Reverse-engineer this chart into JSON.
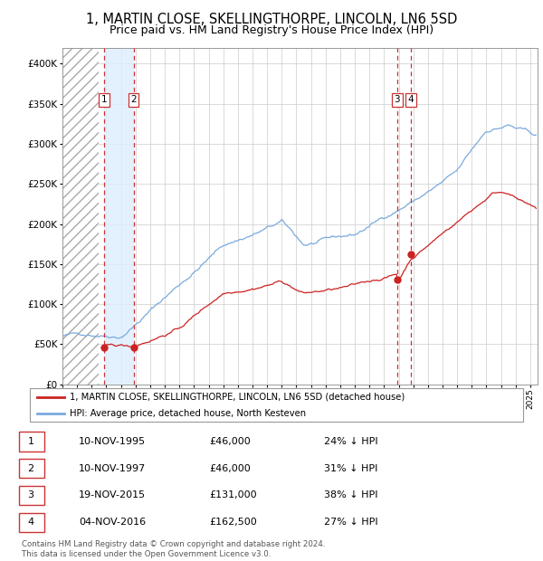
{
  "title": "1, MARTIN CLOSE, SKELLINGTHORPE, LINCOLN, LN6 5SD",
  "subtitle": "Price paid vs. HM Land Registry's House Price Index (HPI)",
  "title_fontsize": 10.5,
  "subtitle_fontsize": 9,
  "ylim": [
    0,
    420000
  ],
  "yticks": [
    0,
    50000,
    100000,
    150000,
    200000,
    250000,
    300000,
    350000,
    400000
  ],
  "ytick_labels": [
    "£0",
    "£50K",
    "£100K",
    "£150K",
    "£200K",
    "£250K",
    "£300K",
    "£350K",
    "£400K"
  ],
  "xlim_start": 1993.0,
  "xlim_end": 2025.5,
  "hpi_color": "#7aaadd",
  "price_color": "#cc2222",
  "vline_color": "#cc3333",
  "shade_color": "#ddeeff",
  "legend_label_price": "1, MARTIN CLOSE, SKELLINGTHORPE, LINCOLN, LN6 5SD (detached house)",
  "legend_label_hpi": "HPI: Average price, detached house, North Kesteven",
  "sales": [
    {
      "num": 1,
      "date_num": 1995.86,
      "price": 46000
    },
    {
      "num": 2,
      "date_num": 1997.86,
      "price": 46000
    },
    {
      "num": 3,
      "date_num": 2015.88,
      "price": 131000
    },
    {
      "num": 4,
      "date_num": 2016.84,
      "price": 162500
    }
  ],
  "table_rows": [
    [
      "1",
      "10-NOV-1995",
      "£46,000",
      "24% ↓ HPI"
    ],
    [
      "2",
      "10-NOV-1997",
      "£46,000",
      "31% ↓ HPI"
    ],
    [
      "3",
      "19-NOV-2015",
      "£131,000",
      "38% ↓ HPI"
    ],
    [
      "4",
      "04-NOV-2016",
      "£162,500",
      "27% ↓ HPI"
    ]
  ],
  "footnote": "Contains HM Land Registry data © Crown copyright and database right 2024.\nThis data is licensed under the Open Government Licence v3.0.",
  "hatch_region_end": 1995.5,
  "shade_region": [
    1995.86,
    1997.86
  ]
}
